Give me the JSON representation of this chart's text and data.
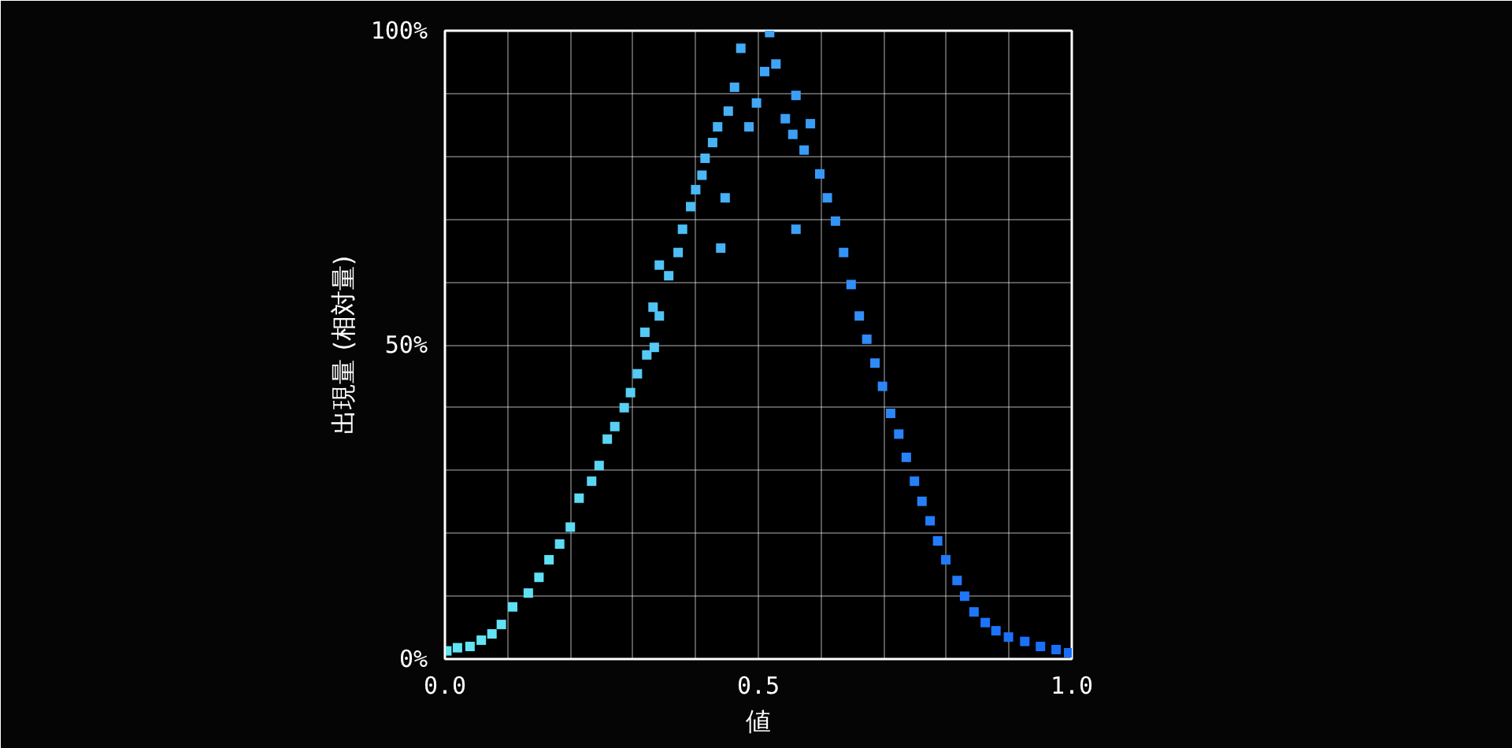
{
  "chart_data": {
    "type": "scatter",
    "xlabel": "値",
    "ylabel": "出現量 (相対量)",
    "xlim": [
      0,
      1
    ],
    "ylim": [
      0,
      100
    ],
    "xticks": [
      {
        "value": 0,
        "label": "0.0"
      },
      {
        "value": 0.5,
        "label": "0.5"
      },
      {
        "value": 1,
        "label": "1.0"
      }
    ],
    "yticks": [
      {
        "value": 0,
        "label": "0%"
      },
      {
        "value": 50,
        "label": "50%"
      },
      {
        "value": 100,
        "label": "100%"
      }
    ],
    "grid": true,
    "marker": "square",
    "x": [
      0.003,
      0.02,
      0.04,
      0.058,
      0.075,
      0.09,
      0.108,
      0.133,
      0.15,
      0.166,
      0.183,
      0.2,
      0.214,
      0.234,
      0.246,
      0.259,
      0.271,
      0.286,
      0.296,
      0.307,
      0.322,
      0.334,
      0.319,
      0.342,
      0.332,
      0.357,
      0.342,
      0.372,
      0.379,
      0.392,
      0.4,
      0.41,
      0.415,
      0.427,
      0.435,
      0.452,
      0.462,
      0.472,
      0.44,
      0.447,
      0.485,
      0.497,
      0.51,
      0.518,
      0.528,
      0.543,
      0.555,
      0.56,
      0.573,
      0.583,
      0.598,
      0.61,
      0.623,
      0.56,
      0.636,
      0.648,
      0.661,
      0.673,
      0.686,
      0.698,
      0.711,
      0.724,
      0.736,
      0.749,
      0.761,
      0.774,
      0.786,
      0.799,
      0.817,
      0.829,
      0.844,
      0.862,
      0.879,
      0.899,
      0.925,
      0.95,
      0.975,
      0.995
    ],
    "values": [
      1.3,
      1.8,
      2,
      3,
      4,
      5.5,
      8.3,
      10.5,
      13,
      15.8,
      18.3,
      21,
      25.6,
      28.3,
      30.8,
      35,
      37,
      40,
      42.4,
      45.4,
      48.4,
      49.6,
      52,
      54.6,
      56,
      61,
      62.7,
      64.7,
      68.4,
      72,
      74.7,
      77,
      79.7,
      82.2,
      84.7,
      87.2,
      91,
      97.2,
      65.4,
      73.4,
      84.7,
      88.5,
      93.5,
      99.7,
      94.7,
      86,
      83.5,
      89.7,
      81,
      85.2,
      77.2,
      73.4,
      69.7,
      68.4,
      64.7,
      59.6,
      54.6,
      50.9,
      47.1,
      43.4,
      39.1,
      35.8,
      32.1,
      28.3,
      25.1,
      22,
      18.8,
      15.8,
      12.5,
      10,
      7.5,
      5.8,
      4.5,
      3.5,
      2.8,
      2,
      1.5,
      1
    ],
    "colors": [
      "#62e4f4",
      "#62e4f4",
      "#62e4f4",
      "#62e4f4",
      "#62e4f4",
      "#62e4f4",
      "#60e0f4",
      "#60e0f4",
      "#60e0f4",
      "#60e0f4",
      "#5ddcf4",
      "#5ddcf4",
      "#5ddcf4",
      "#5ad6f4",
      "#5ad6f4",
      "#5ad6f4",
      "#57d0f4",
      "#57d0f4",
      "#57d0f4",
      "#54caf4",
      "#54caf4",
      "#54caf4",
      "#54caf4",
      "#50c4f5",
      "#50c4f5",
      "#50c4f5",
      "#50c4f5",
      "#4cbef5",
      "#4cbef5",
      "#4cbef5",
      "#4ab8f5",
      "#4ab8f5",
      "#4ab8f5",
      "#47b2f5",
      "#47b2f5",
      "#47b2f5",
      "#44acf6",
      "#44acf6",
      "#47b2f5",
      "#47b2f5",
      "#42a8f6",
      "#42a8f6",
      "#3fa4f6",
      "#3fa4f6",
      "#3fa4f6",
      "#3c9ff6",
      "#3c9ff6",
      "#3c9ff6",
      "#3a9bf6",
      "#3a9bf6",
      "#3797f7",
      "#3797f7",
      "#3493f7",
      "#3c9ff6",
      "#3493f7",
      "#318ff7",
      "#318ff7",
      "#2e8bf7",
      "#2e8bf7",
      "#2b87f8",
      "#2b87f8",
      "#2883f8",
      "#2883f8",
      "#2580f8",
      "#2580f8",
      "#237df8",
      "#237df8",
      "#207af8",
      "#207af8",
      "#1e77f9",
      "#1e77f9",
      "#1c74f9",
      "#1c74f9",
      "#1a72f9",
      "#1a72f9",
      "#1870f9",
      "#1870f9",
      "#166ef9"
    ]
  }
}
